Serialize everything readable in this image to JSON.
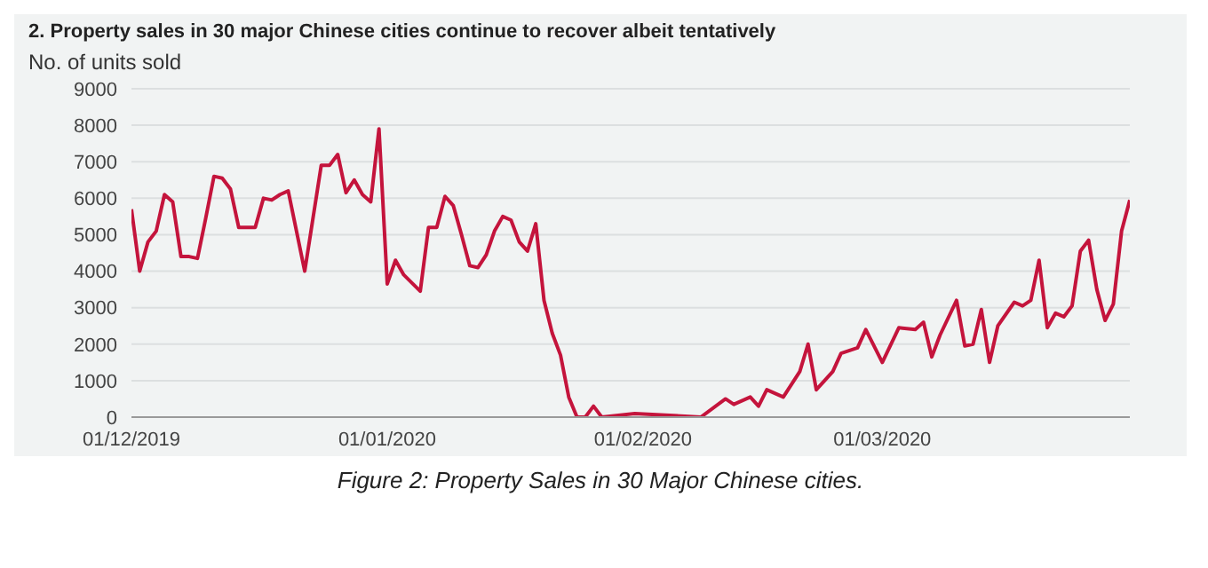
{
  "chart_data": {
    "type": "line",
    "title": "2. Property sales in 30 major Chinese cities continue to recover albeit tentatively",
    "ylabel": "No. of units sold",
    "annotations": [
      "Figure 2: Property Sales in 30 Major Chinese cities."
    ],
    "x": [
      "2019-12-01",
      "2019-12-02",
      "2019-12-03",
      "2019-12-04",
      "2019-12-05",
      "2019-12-06",
      "2019-12-07",
      "2019-12-08",
      "2019-12-09",
      "2019-12-10",
      "2019-12-11",
      "2019-12-12",
      "2019-12-13",
      "2019-12-14",
      "2019-12-16",
      "2019-12-17",
      "2019-12-18",
      "2019-12-19",
      "2019-12-20",
      "2019-12-22",
      "2019-12-24",
      "2019-12-25",
      "2019-12-26",
      "2019-12-27",
      "2019-12-28",
      "2019-12-29",
      "2019-12-30",
      "2019-12-31",
      "2020-01-01",
      "2020-01-02",
      "2020-01-03",
      "2020-01-05",
      "2020-01-06",
      "2020-01-07",
      "2020-01-08",
      "2020-01-09",
      "2020-01-10",
      "2020-01-11",
      "2020-01-12",
      "2020-01-13",
      "2020-01-14",
      "2020-01-15",
      "2020-01-16",
      "2020-01-17",
      "2020-01-18",
      "2020-01-19",
      "2020-01-20",
      "2020-01-21",
      "2020-01-22",
      "2020-01-23",
      "2020-01-24",
      "2020-01-25",
      "2020-01-26",
      "2020-01-27",
      "2020-01-31",
      "2020-02-08",
      "2020-02-11",
      "2020-02-12",
      "2020-02-14",
      "2020-02-15",
      "2020-02-16",
      "2020-02-18",
      "2020-02-20",
      "2020-02-21",
      "2020-02-22",
      "2020-02-24",
      "2020-02-25",
      "2020-02-27",
      "2020-02-28",
      "2020-03-01",
      "2020-03-03",
      "2020-03-05",
      "2020-03-06",
      "2020-03-07",
      "2020-03-08",
      "2020-03-10",
      "2020-03-11",
      "2020-03-12",
      "2020-03-13",
      "2020-03-14",
      "2020-03-15",
      "2020-03-17",
      "2020-03-18",
      "2020-03-19",
      "2020-03-20",
      "2020-03-21",
      "2020-03-22",
      "2020-03-23",
      "2020-03-24",
      "2020-03-25",
      "2020-03-26",
      "2020-03-27",
      "2020-03-28",
      "2020-03-29",
      "2020-03-30",
      "2020-03-31"
    ],
    "series": [
      {
        "color": "#c4143c",
        "values": [
          5700,
          4000,
          4800,
          5100,
          6100,
          5900,
          4400,
          4400,
          4350,
          5450,
          6600,
          6550,
          6250,
          5200,
          5200,
          6000,
          5950,
          6100,
          6200,
          4000,
          6900,
          6900,
          7200,
          6150,
          6500,
          6100,
          5900,
          7900,
          3650,
          4300,
          3900,
          3450,
          5200,
          5200,
          6050,
          5800,
          5000,
          4150,
          4100,
          4450,
          5100,
          5500,
          5400,
          4800,
          4550,
          5300,
          3200,
          2300,
          1700,
          550,
          0,
          0,
          300,
          0,
          100,
          0,
          500,
          350,
          550,
          300,
          750,
          550,
          1250,
          2000,
          750,
          1250,
          1750,
          1900,
          2400,
          1500,
          2450,
          2400,
          2600,
          1650,
          2250,
          3200,
          1950,
          2000,
          2950,
          1500,
          2500,
          3150,
          3050,
          3200,
          4300,
          2450,
          2850,
          2750,
          3050,
          4550,
          4850,
          3500,
          2650,
          3100,
          5100,
          5950
        ]
      }
    ],
    "xlim": [
      "2019-12-01",
      "2020-03-31"
    ],
    "xticks": [
      {
        "value": "2019-12-01",
        "label": "01/12/2019"
      },
      {
        "value": "2020-01-01",
        "label": "01/01/2020"
      },
      {
        "value": "2020-02-01",
        "label": "01/02/2020"
      },
      {
        "value": "2020-03-01",
        "label": "01/03/2020"
      }
    ],
    "ylim": [
      0,
      9000
    ],
    "yticks": [
      0,
      1000,
      2000,
      3000,
      4000,
      5000,
      6000,
      7000,
      8000,
      9000
    ],
    "grid": "y",
    "legend": false,
    "marker": "none",
    "line_style": "solid"
  }
}
